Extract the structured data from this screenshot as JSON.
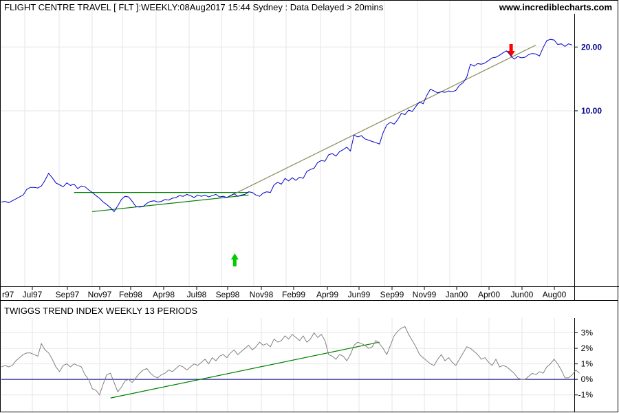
{
  "chart_title": "FLIGHT CENTRE TRAVEL [ FLT ]:WEEKLY:08Aug2017 15:44 Sydney : Data Delayed > 20mins",
  "website": "www.incrediblecharts.com",
  "indicator_title": "TWIGGS TREND INDEX WEEKLY 13 PERIODS",
  "colors": {
    "price_line": "#0000cc",
    "indicator_line": "#808080",
    "trend_green": "#008000",
    "trend_olive": "#8b8b5a",
    "zero_line": "#000080",
    "arrow_up": "#00cc00",
    "arrow_down": "#ff0000",
    "price_tick_text": "#00008b"
  },
  "chart_data": [
    {
      "type": "line",
      "title": "FLIGHT CENTRE TRAVEL [ FLT ]:WEEKLY:08Aug2017 15:44 Sydney : Data Delayed > 20mins",
      "x_tick_labels": [
        "r97",
        "Jul97",
        "Sep97",
        "Nov97",
        "Feb98",
        "Apr98",
        "Jul98",
        "Sep98",
        "Nov98",
        "Feb99",
        "Apr99",
        "Jun99",
        "Sep99",
        "Nov99",
        "Jan00",
        "Apr00",
        "Jun00",
        "Aug00"
      ],
      "y_tick_labels": [
        "10.00",
        "20.00"
      ],
      "ylim": [
        -17.3,
        23.7
      ],
      "grid": true,
      "series": [
        {
          "values": [
            -4.3,
            -4.2,
            -4.4,
            -4.1,
            -3.8,
            -3.5,
            -3.2,
            -2.3,
            -2.0,
            -2.0,
            -2.1,
            -1.8,
            -0.9,
            0.2,
            -0.5,
            -1.3,
            -1.6,
            -1.9,
            -1.3,
            -1.7,
            -1.5,
            -2.2,
            -1.8,
            -1.9,
            -2.4,
            -2.8,
            -3.3,
            -3.7,
            -4.3,
            -4.7,
            -5.2,
            -5.8,
            -4.9,
            -3.9,
            -3.4,
            -3.5,
            -4.2,
            -5.0,
            -5.1,
            -5.0,
            -4.5,
            -4.2,
            -4.1,
            -4.3,
            -4.2,
            -3.9,
            -4.0,
            -3.7,
            -3.6,
            -3.3,
            -3.4,
            -3.1,
            -3.3,
            -3.6,
            -3.2,
            -3.4,
            -3.2,
            -3.5,
            -3.3,
            -3.1,
            -3.5,
            -3.4,
            -3.6,
            -3.3,
            -3.0,
            -3.4,
            -3.2,
            -3.1,
            -2.7,
            -2.8,
            -3.2,
            -3.4,
            -2.9,
            -2.7,
            -2.8,
            -1.6,
            -1.2,
            -1.5,
            -0.6,
            -1.0,
            -0.5,
            -0.9,
            -0.4,
            -0.6,
            0.5,
            0.8,
            1.0,
            1.9,
            2.2,
            2.1,
            3.1,
            3.3,
            2.9,
            3.6,
            3.9,
            4.3,
            3.7,
            6.2,
            5.9,
            6.1,
            5.6,
            5.4,
            5.2,
            5.0,
            4.8,
            6.6,
            7.8,
            8.2,
            7.9,
            8.6,
            9.6,
            9.4,
            10.1,
            9.9,
            10.7,
            11.4,
            11.1,
            12.4,
            13.4,
            13.1,
            12.8,
            13.0,
            12.9,
            13.1,
            13.0,
            13.2,
            14.0,
            14.4,
            15.3,
            17.3,
            17.0,
            17.4,
            17.3,
            17.5,
            17.9,
            18.3,
            18.4,
            18.7,
            19.1,
            19.4,
            18.7,
            18.1,
            18.5,
            18.3,
            18.4,
            18.8,
            19.0,
            18.9,
            18.6,
            19.9,
            21.0,
            21.2,
            21.1,
            20.4,
            20.5,
            20.1,
            20.5,
            20.3
          ]
        }
      ],
      "annotations": {
        "green_channel_top_y": -2.8,
        "green_channel_bottom_y": [
          -5.8,
          -3.2
        ],
        "olive_trend_y": [
          -3.6,
          20.3
        ],
        "up_arrow_week": 64,
        "down_arrow_week": 140
      }
    },
    {
      "type": "line",
      "title": "TWIGGS TREND INDEX WEEKLY 13 PERIODS",
      "y_tick_labels": [
        "-1%",
        "0%",
        "1%",
        "2%",
        "3%"
      ],
      "ylim": [
        -1.5,
        3.6
      ],
      "grid": true,
      "series": [
        {
          "values": [
            0.8,
            0.9,
            0.8,
            0.9,
            1.2,
            1.4,
            1.6,
            1.7,
            1.7,
            1.6,
            1.5,
            2.3,
            1.9,
            1.7,
            1.3,
            0.8,
            0.5,
            0.9,
            1.0,
            0.8,
            1.0,
            0.9,
            0.8,
            0.3,
            0.0,
            -0.6,
            -0.7,
            -1.0,
            -0.3,
            0.3,
            0.4,
            -0.2,
            -0.8,
            -0.5,
            -0.1,
            0.0,
            -0.2,
            0.1,
            0.4,
            0.6,
            0.7,
            0.4,
            0.2,
            0.1,
            0.3,
            0.4,
            0.6,
            0.5,
            0.7,
            0.9,
            0.8,
            0.6,
            0.8,
            1.0,
            0.9,
            1.1,
            1.3,
            1.0,
            1.4,
            1.2,
            1.5,
            1.6,
            1.4,
            1.7,
            1.9,
            1.6,
            1.8,
            2.0,
            2.2,
            1.9,
            2.1,
            2.4,
            2.2,
            2.3,
            2.1,
            2.6,
            2.4,
            2.5,
            2.8,
            2.6,
            2.9,
            2.7,
            2.5,
            2.8,
            2.4,
            2.6,
            3.0,
            2.7,
            2.9,
            2.5,
            1.6,
            1.5,
            1.3,
            1.6,
            1.5,
            1.2,
            1.6,
            2.2,
            2.4,
            2.3,
            2.2,
            2.0,
            2.1,
            2.5,
            2.3,
            2.0,
            1.6,
            2.2,
            2.8,
            3.1,
            3.3,
            3.4,
            2.9,
            2.5,
            2.1,
            1.6,
            1.4,
            1.2,
            1.0,
            0.9,
            1.3,
            1.6,
            1.2,
            1.4,
            1.1,
            0.9,
            1.3,
            1.7,
            2.1,
            2.0,
            1.8,
            1.6,
            1.3,
            1.4,
            1.1,
            0.9,
            1.3,
            0.8,
            0.9,
            0.8,
            0.6,
            0.4,
            0.1,
            0.0,
            0.0,
            0.2,
            0.4,
            0.3,
            0.5,
            0.4,
            0.8,
            1.0,
            1.3,
            1.0,
            0.6,
            0.1,
            0.1,
            0.3,
            0.6,
            0.4
          ]
        }
      ],
      "annotations": {
        "trend_line_y": [
          -1.2,
          2.4
        ],
        "zero_line": 0
      }
    }
  ]
}
